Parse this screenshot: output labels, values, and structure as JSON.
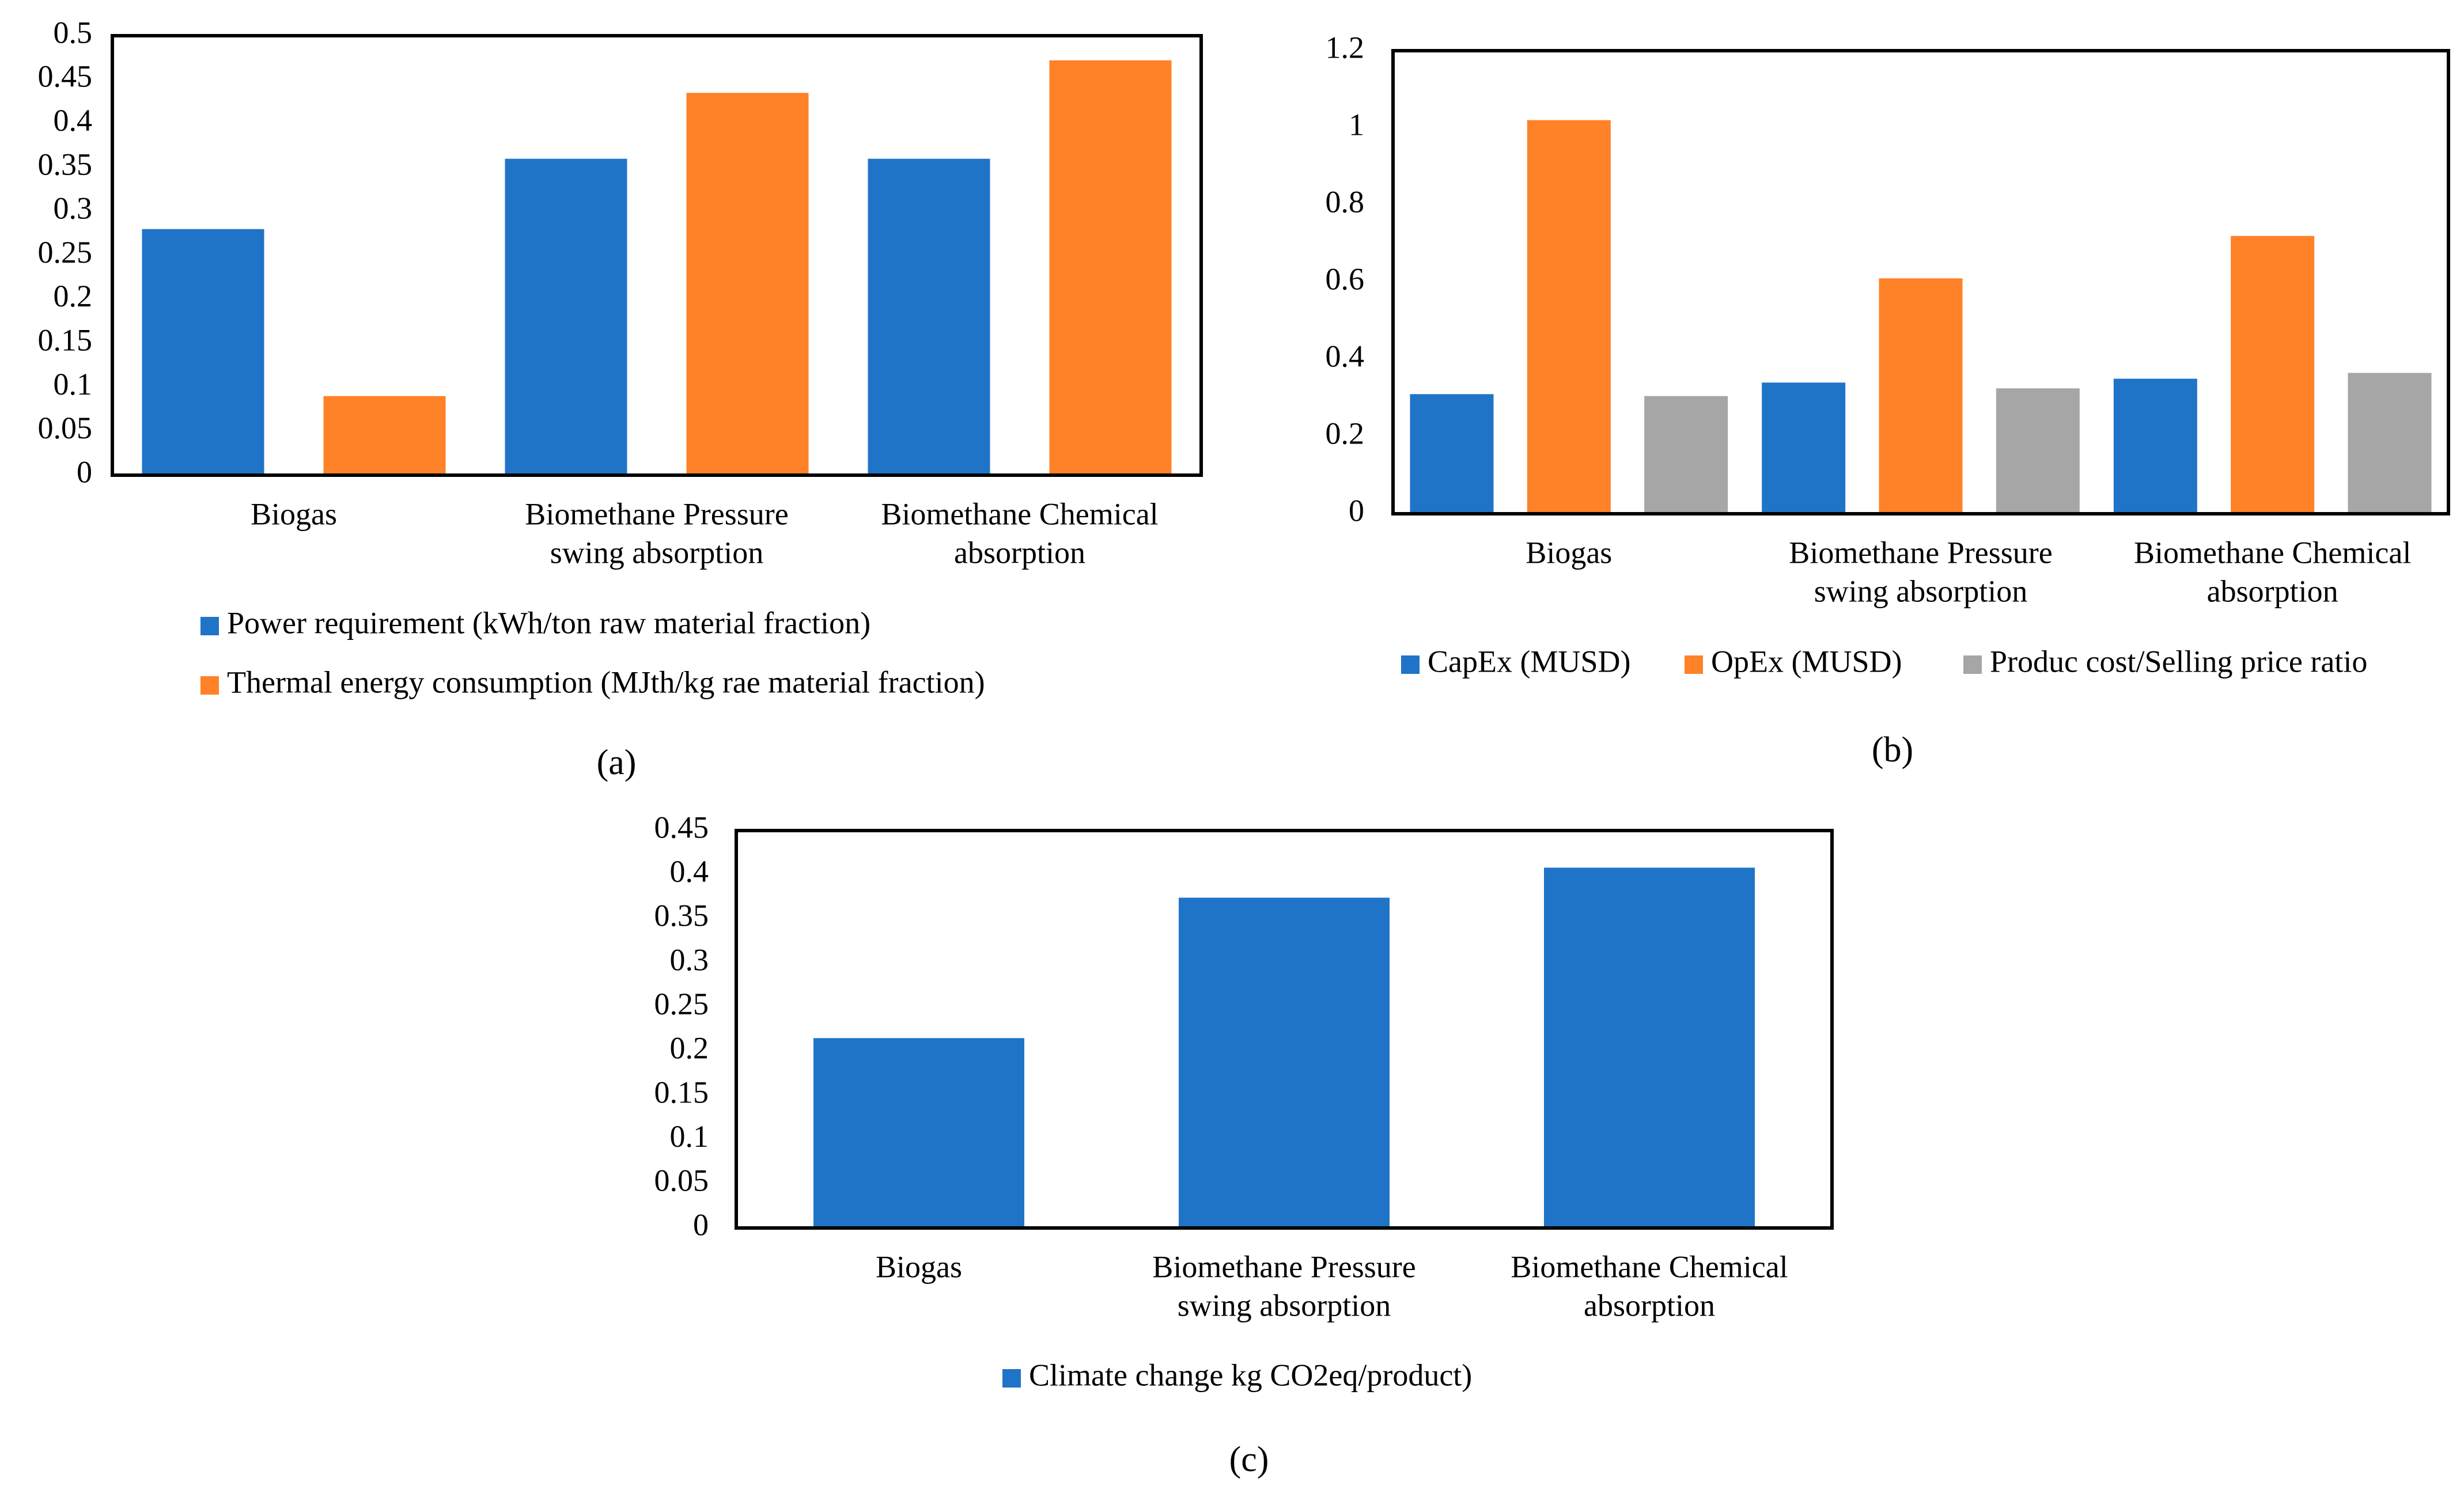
{
  "chart_data": [
    {
      "type": "bar",
      "panel_label": "(a)",
      "categories": [
        [
          "Biogas"
        ],
        [
          "Biomethane Pressure",
          "swing absorption"
        ],
        [
          "Biomethane Chemical",
          "absorption"
        ]
      ],
      "yticks": [
        "0",
        "0.05",
        "0.1",
        "0.15",
        "0.2",
        "0.25",
        "0.3",
        "0.35",
        "0.4",
        "0.45",
        "0.5"
      ],
      "ylim": [
        0,
        0.5
      ],
      "series": [
        {
          "name": "Power requirement (kWh/ton raw material fraction)",
          "color": "#1F74C8",
          "values": [
            0.28,
            0.36,
            0.36
          ]
        },
        {
          "name": "Thermal energy consumption (MJth/kg rae material fraction)",
          "color": "#FF8128",
          "values": [
            0.09,
            0.435,
            0.472
          ]
        }
      ],
      "legend_placement": "bottom"
    },
    {
      "type": "bar",
      "panel_label": "(b)",
      "categories": [
        [
          "Biogas"
        ],
        [
          "Biomethane Pressure",
          "swing absorption"
        ],
        [
          "Biomethane Chemical",
          "absorption"
        ]
      ],
      "yticks": [
        "0",
        "0.2",
        "0.4",
        "0.6",
        "0.8",
        "1",
        "1.2"
      ],
      "ylim": [
        0,
        1.2
      ],
      "series": [
        {
          "name": "CapEx (MUSD)",
          "color": "#1F74C8",
          "values": [
            0.31,
            0.34,
            0.35
          ]
        },
        {
          "name": "OpEx (MUSD)",
          "color": "#FF8128",
          "values": [
            1.02,
            0.61,
            0.72
          ]
        },
        {
          "name": "Produc cost/Selling price ratio",
          "color": "#A6A6A6",
          "values": [
            0.305,
            0.325,
            0.365
          ]
        }
      ],
      "legend_placement": "bottom"
    },
    {
      "type": "bar",
      "panel_label": "(c)",
      "categories": [
        [
          "Biogas"
        ],
        [
          "Biomethane Pressure",
          "swing absorption"
        ],
        [
          "Biomethane Chemical",
          "absorption"
        ]
      ],
      "yticks": [
        "0",
        "0.05",
        "0.1",
        "0.15",
        "0.2",
        "0.25",
        "0.3",
        "0.35",
        "0.4",
        "0.45"
      ],
      "ylim": [
        0,
        0.45
      ],
      "series": [
        {
          "name": "Climate change kg CO2eq/product)",
          "color": "#1F74C8",
          "values": [
            0.215,
            0.374,
            0.408
          ]
        }
      ],
      "legend_placement": "bottom"
    }
  ]
}
